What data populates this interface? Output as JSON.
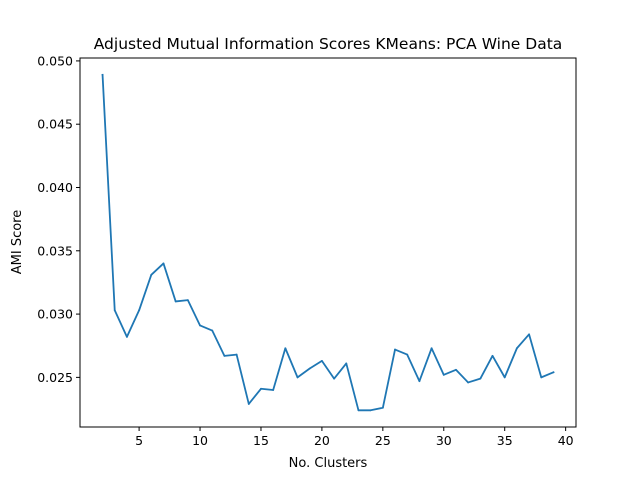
{
  "chart_data": {
    "type": "line",
    "title": "Adjusted Mutual Information Scores KMeans: PCA Wine Data",
    "xlabel": "No. Clusters",
    "ylabel": "AMI Score",
    "xlim": [
      0.15,
      40.85
    ],
    "ylim": [
      0.02108,
      0.05023
    ],
    "xticks": [
      5,
      10,
      15,
      20,
      25,
      30,
      35,
      40
    ],
    "xtick_labels": [
      "5",
      "10",
      "15",
      "20",
      "25",
      "30",
      "35",
      "40"
    ],
    "yticks": [
      0.025,
      0.03,
      0.035,
      0.04,
      0.045,
      0.05
    ],
    "ytick_labels": [
      "0.025",
      "0.030",
      "0.035",
      "0.040",
      "0.045",
      "0.050"
    ],
    "grid": false,
    "line_color": "#1f77b4",
    "series": [
      {
        "x": [
          2,
          3,
          4,
          5,
          6,
          7,
          8,
          9,
          10,
          11,
          12,
          13,
          14,
          15,
          16,
          17,
          18,
          19,
          20,
          21,
          22,
          23,
          24,
          25,
          26,
          27,
          28,
          29,
          30,
          31,
          32,
          33,
          34,
          35,
          36,
          37,
          38,
          39
        ],
        "values": [
          0.0489,
          0.0303,
          0.0282,
          0.0303,
          0.0331,
          0.034,
          0.031,
          0.0311,
          0.0291,
          0.0287,
          0.0267,
          0.0268,
          0.0229,
          0.0241,
          0.024,
          0.0273,
          0.025,
          0.0257,
          0.0263,
          0.0249,
          0.0261,
          0.0224,
          0.0224,
          0.0226,
          0.0272,
          0.0268,
          0.0247,
          0.0273,
          0.0252,
          0.0256,
          0.0246,
          0.0249,
          0.0267,
          0.025,
          0.0273,
          0.0284,
          0.025,
          0.0254
        ]
      }
    ]
  }
}
